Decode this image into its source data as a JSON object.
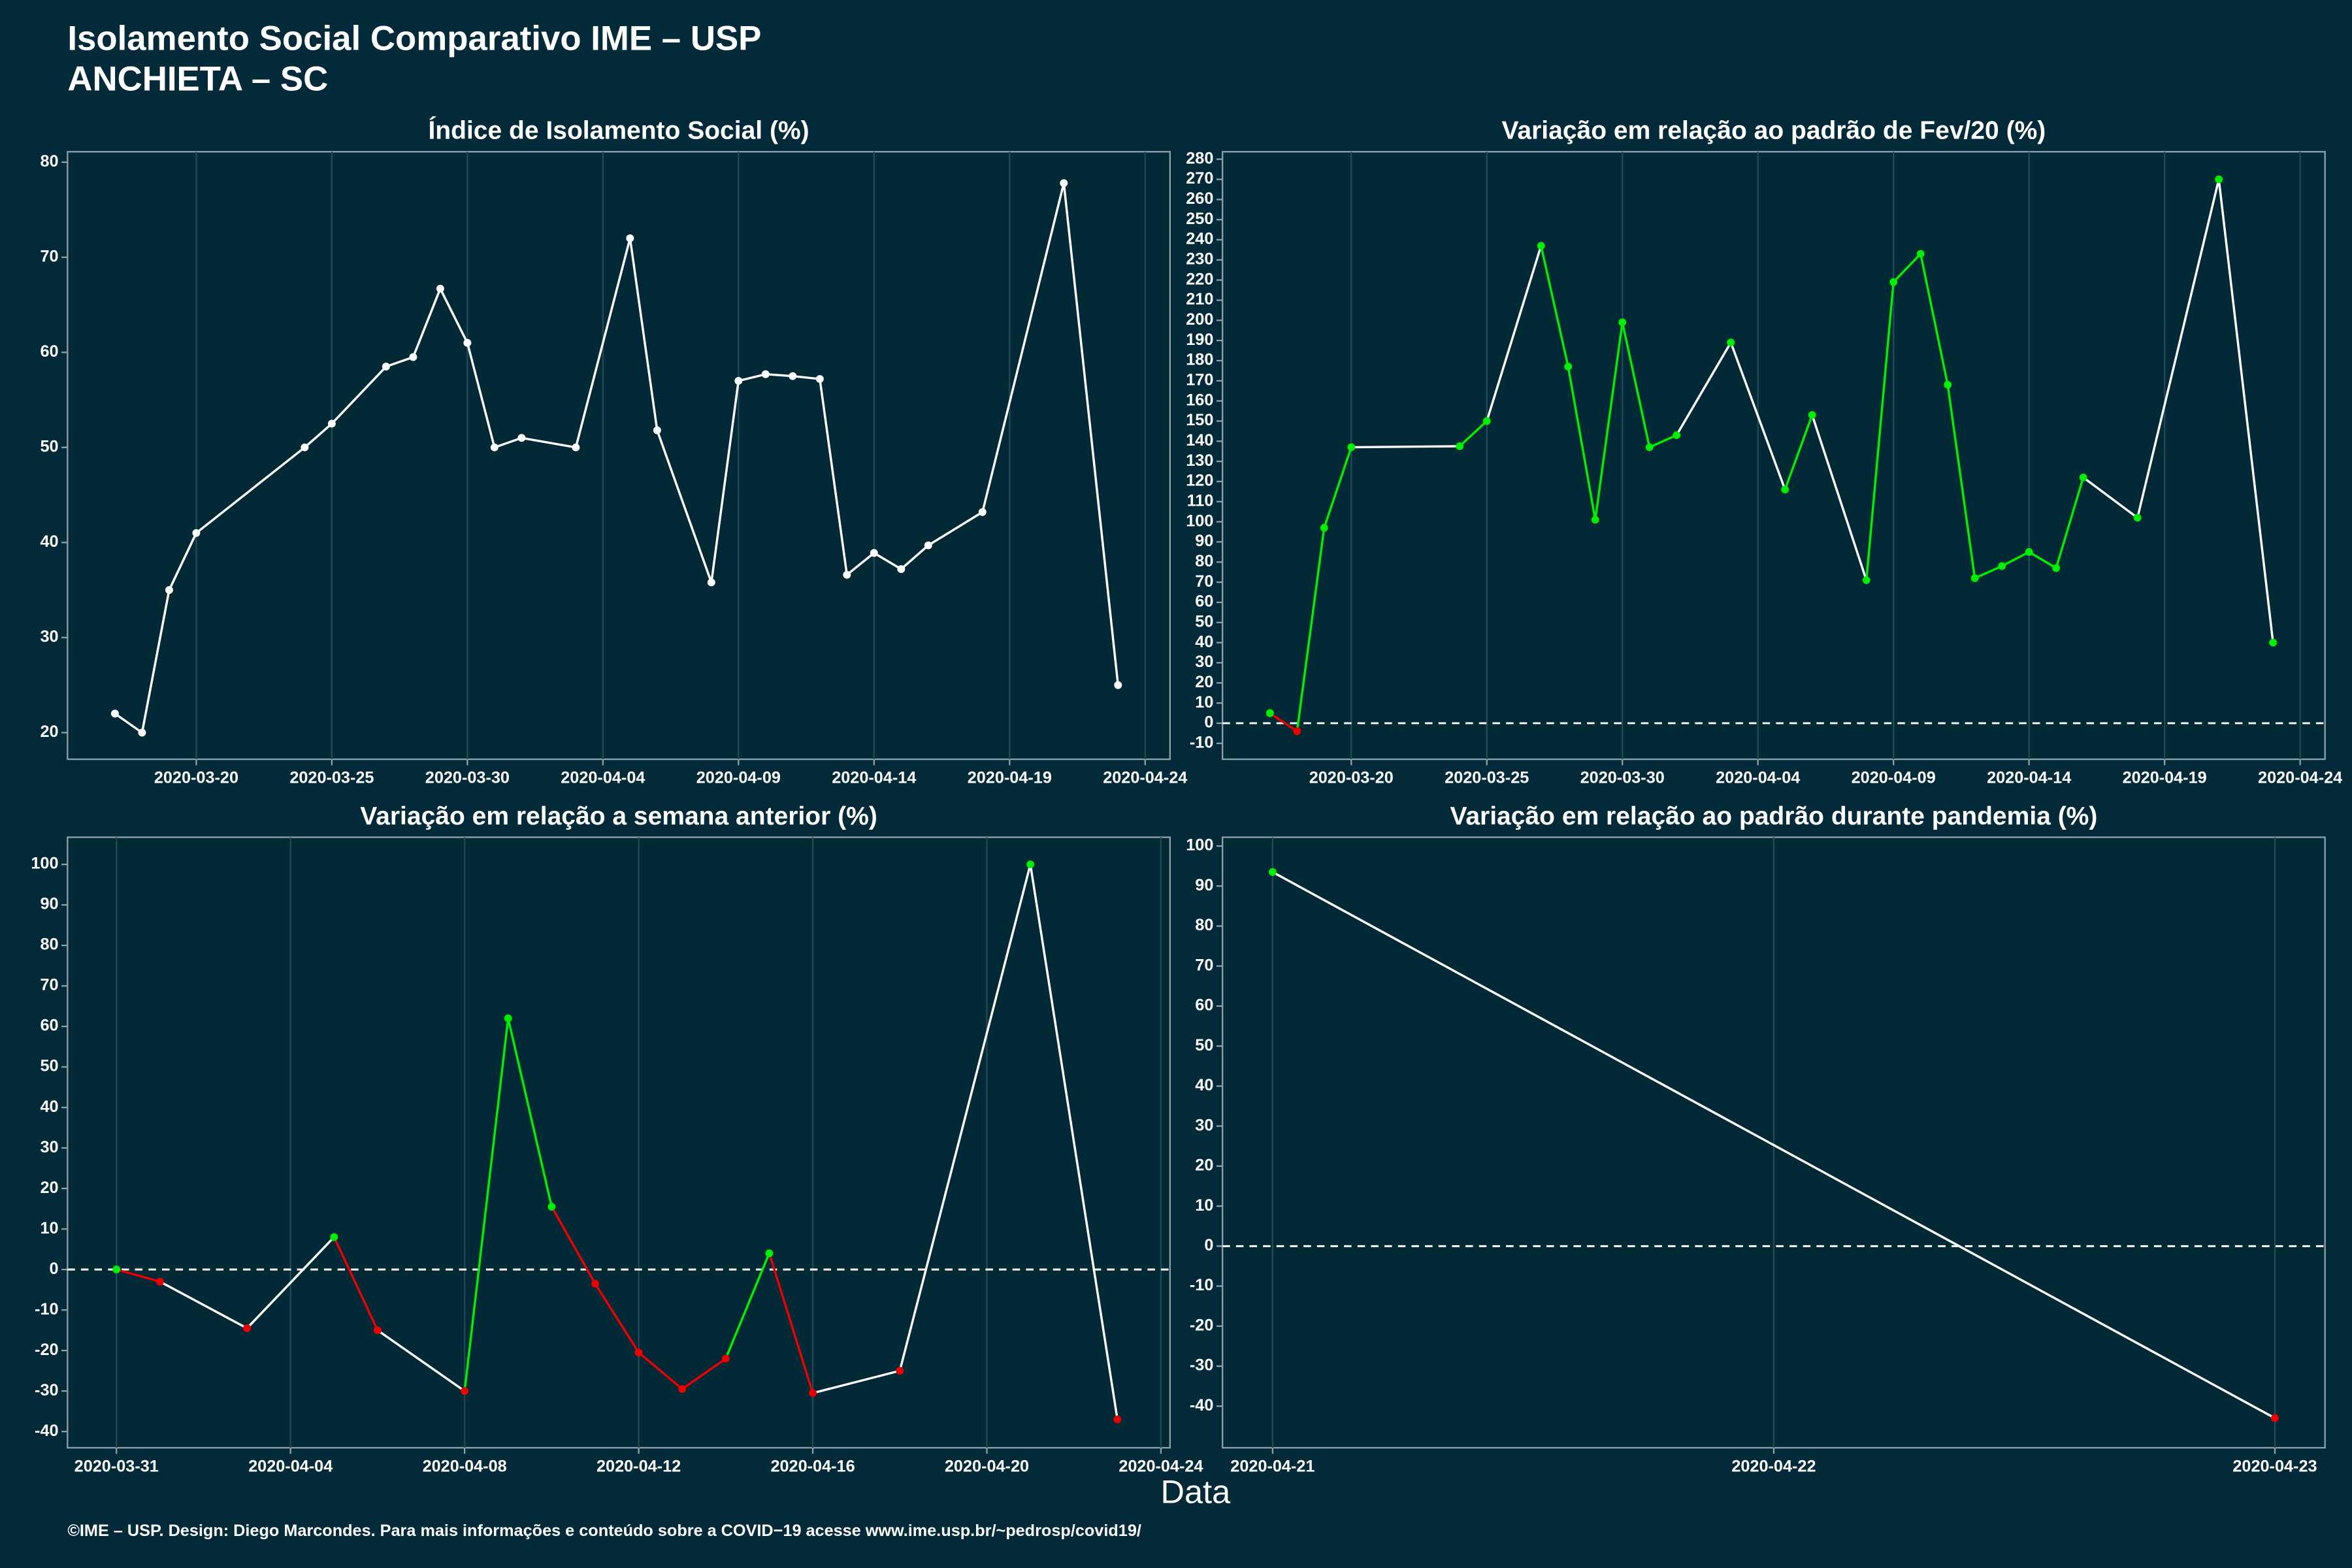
{
  "title": [
    "Isolamento Social Comparativo IME – USP",
    "ANCHIETA – SC"
  ],
  "x_label": "Data",
  "caption": "©IME – USP. Design: Diego Marcondes. Para mais informações e conteúdo sobre a COVID−19 acesse www.ime.usp.br/~pedrosp/covid19/",
  "chart_data": [
    {
      "type": "line",
      "title": "Índice de Isolamento Social (%)",
      "x": [
        "2020-03-17",
        "2020-03-18",
        "2020-03-19",
        "2020-03-20",
        "2020-03-24",
        "2020-03-25",
        "2020-03-27",
        "2020-03-28",
        "2020-03-29",
        "2020-03-30",
        "2020-03-31",
        "2020-04-01",
        "2020-04-03",
        "2020-04-05",
        "2020-04-06",
        "2020-04-08",
        "2020-04-09",
        "2020-04-10",
        "2020-04-11",
        "2020-04-12",
        "2020-04-13",
        "2020-04-14",
        "2020-04-15",
        "2020-04-16",
        "2020-04-18",
        "2020-04-21",
        "2020-04-23"
      ],
      "values": [
        22,
        20,
        35,
        41,
        50,
        52.5,
        58.5,
        59.5,
        66.7,
        61,
        50,
        51,
        50,
        72,
        51.8,
        35.8,
        57,
        57.7,
        57.5,
        57.2,
        36.6,
        38.9,
        37.2,
        39.7,
        43.2,
        77.8,
        25
      ],
      "color": "#ffffff",
      "xlim": [
        "2020-03-15T06:00",
        "2020-04-24T22:00"
      ],
      "xticks": [
        "2020-03-20",
        "2020-03-25",
        "2020-03-30",
        "2020-04-04",
        "2020-04-09",
        "2020-04-14",
        "2020-04-19",
        "2020-04-24"
      ],
      "ylim": [
        17.2,
        81.1
      ],
      "yticks": [
        20,
        30,
        40,
        50,
        60,
        70,
        80
      ],
      "grid": true,
      "zero_line": false
    },
    {
      "type": "line",
      "title": "Variação em relação ao padrão de Fev/20 (%)",
      "x": [
        "2020-03-17",
        "2020-03-18",
        "2020-03-19",
        "2020-03-20",
        "2020-03-24",
        "2020-03-25",
        "2020-03-27",
        "2020-03-28",
        "2020-03-29",
        "2020-03-30",
        "2020-03-31",
        "2020-04-01",
        "2020-04-03",
        "2020-04-05",
        "2020-04-06",
        "2020-04-08",
        "2020-04-09",
        "2020-04-10",
        "2020-04-11",
        "2020-04-12",
        "2020-04-13",
        "2020-04-14",
        "2020-04-15",
        "2020-04-16",
        "2020-04-18",
        "2020-04-21",
        "2020-04-23"
      ],
      "values": [
        5,
        -4,
        97,
        137,
        137.5,
        150,
        237,
        177,
        101,
        199,
        137,
        143,
        189,
        116,
        153,
        71,
        219,
        233,
        168,
        72,
        78,
        85,
        77,
        122,
        102,
        270,
        40
      ],
      "pos_color": "#00ee00",
      "neg_color": "#ee0000",
      "line_color": "#ffffff",
      "xlim": [
        "2020-03-15T06:00",
        "2020-04-24T22:00"
      ],
      "xticks": [
        "2020-03-20",
        "2020-03-25",
        "2020-03-30",
        "2020-04-04",
        "2020-04-09",
        "2020-04-14",
        "2020-04-19",
        "2020-04-24"
      ],
      "ylim": [
        -17.9,
        283.7
      ],
      "yticks": [
        -10,
        0,
        10,
        20,
        30,
        40,
        50,
        60,
        70,
        80,
        90,
        100,
        110,
        120,
        130,
        140,
        150,
        160,
        170,
        180,
        190,
        200,
        210,
        220,
        230,
        240,
        250,
        260,
        270,
        280
      ],
      "grid": true,
      "zero_line": true
    },
    {
      "type": "line",
      "title": "Variação em relação a semana anterior (%)",
      "x": [
        "2020-03-31",
        "2020-04-01",
        "2020-04-03",
        "2020-04-05",
        "2020-04-06",
        "2020-04-08",
        "2020-04-09",
        "2020-04-10",
        "2020-04-11",
        "2020-04-12",
        "2020-04-13",
        "2020-04-14",
        "2020-04-15",
        "2020-04-16",
        "2020-04-18",
        "2020-04-21",
        "2020-04-23"
      ],
      "values": [
        0,
        -3,
        -14.5,
        8,
        -15,
        -30,
        62,
        15.5,
        -3.5,
        -20.5,
        -29.5,
        -22,
        4,
        -30.5,
        -25,
        100,
        -37
      ],
      "pos_color": "#00ee00",
      "neg_color": "#ee0000",
      "line_color": "#ffffff",
      "xlim": [
        "2020-03-29T21:00",
        "2020-04-24T05:00"
      ],
      "xticks": [
        "2020-03-31",
        "2020-04-04",
        "2020-04-08",
        "2020-04-12",
        "2020-04-16",
        "2020-04-20",
        "2020-04-24"
      ],
      "ylim": [
        -44,
        106.7
      ],
      "yticks": [
        -40,
        -30,
        -20,
        -10,
        0,
        10,
        20,
        30,
        40,
        50,
        60,
        70,
        80,
        90,
        100
      ],
      "grid": true,
      "zero_line": true
    },
    {
      "type": "line",
      "title": "Variação em relação ao padrão durante pandemia (%)",
      "x": [
        "2020-04-21",
        "2020-04-23"
      ],
      "values": [
        93.5,
        -43
      ],
      "pos_color": "#00ee00",
      "neg_color": "#ee0000",
      "line_color": "#ffffff",
      "xlim": [
        "2020-04-20T21:36",
        "2020-04-23T02:24"
      ],
      "xticks": [
        "2020-04-21",
        "2020-04-22",
        "2020-04-23"
      ],
      "ylim": [
        -50.4,
        102.2
      ],
      "yticks": [
        -40,
        -30,
        -20,
        -10,
        0,
        10,
        20,
        30,
        40,
        50,
        60,
        70,
        80,
        90,
        100
      ],
      "grid": true,
      "zero_line": true
    }
  ]
}
